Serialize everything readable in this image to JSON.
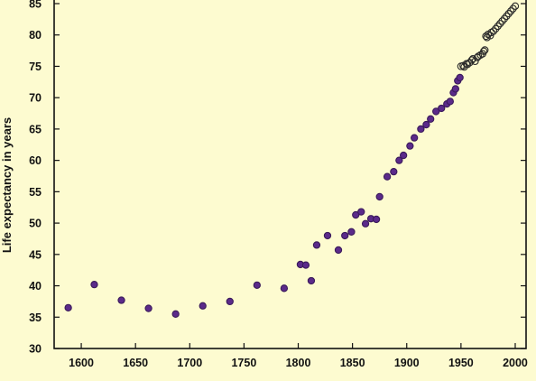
{
  "chart_data": {
    "type": "scatter",
    "title": "",
    "xlabel": "",
    "ylabel": "Life expectancy in years",
    "xlim": [
      1575,
      2010
    ],
    "ylim": [
      30,
      85
    ],
    "x_ticks": [
      1600,
      1650,
      1700,
      1750,
      1800,
      1850,
      1900,
      1950,
      2000
    ],
    "y_ticks": [
      30,
      35,
      40,
      45,
      50,
      55,
      60,
      65,
      70,
      75,
      80,
      85
    ],
    "grid": false,
    "legend": "none",
    "colors": {
      "early": "#5b2a8a",
      "late": "#2a2a2a",
      "background": "#fdfbd0"
    },
    "series": [
      {
        "points": [
          [
            1588,
            36.5
          ],
          [
            1612,
            40.2
          ],
          [
            1637,
            37.7
          ],
          [
            1662,
            36.4
          ],
          [
            1687,
            35.5
          ],
          [
            1712,
            36.8
          ],
          [
            1737,
            37.5
          ],
          [
            1762,
            40.1
          ],
          [
            1787,
            39.6
          ],
          [
            1802,
            43.4
          ],
          [
            1807,
            43.3
          ],
          [
            1812,
            40.8
          ],
          [
            1817,
            46.5
          ],
          [
            1827,
            48.0
          ],
          [
            1837,
            45.7
          ],
          [
            1843,
            48.0
          ],
          [
            1849,
            48.6
          ],
          [
            1853,
            51.3
          ],
          [
            1858,
            51.8
          ],
          [
            1862,
            49.9
          ],
          [
            1867,
            50.7
          ],
          [
            1872,
            50.6
          ],
          [
            1875,
            54.2
          ],
          [
            1882,
            57.4
          ],
          [
            1888,
            58.2
          ],
          [
            1893,
            60.0
          ],
          [
            1897,
            60.8
          ],
          [
            1903,
            62.3
          ],
          [
            1907,
            63.6
          ],
          [
            1913,
            65.0
          ],
          [
            1918,
            65.7
          ],
          [
            1922,
            66.6
          ],
          [
            1927,
            67.8
          ],
          [
            1932,
            68.3
          ],
          [
            1937,
            69.0
          ],
          [
            1940,
            69.4
          ],
          [
            1943,
            70.8
          ],
          [
            1945,
            71.4
          ],
          [
            1947,
            72.7
          ],
          [
            1949,
            73.2
          ],
          [
            1950,
            75.0
          ],
          [
            1952,
            75.1
          ],
          [
            1953,
            74.9
          ],
          [
            1955,
            75.4
          ],
          [
            1956,
            75.3
          ],
          [
            1958,
            75.6
          ],
          [
            1960,
            76.0
          ],
          [
            1961,
            76.2
          ],
          [
            1963,
            75.8
          ],
          [
            1965,
            76.4
          ],
          [
            1966,
            76.6
          ],
          [
            1968,
            76.8
          ],
          [
            1970,
            77.0
          ],
          [
            1971,
            77.4
          ],
          [
            1972,
            77.6
          ],
          [
            1973,
            79.8
          ],
          [
            1974,
            79.6
          ],
          [
            1975,
            80.1
          ],
          [
            1977,
            79.9
          ],
          [
            1978,
            80.4
          ],
          [
            1980,
            80.6
          ],
          [
            1982,
            81.0
          ],
          [
            1984,
            81.4
          ],
          [
            1986,
            81.8
          ],
          [
            1988,
            82.2
          ],
          [
            1990,
            82.6
          ],
          [
            1992,
            83.0
          ],
          [
            1994,
            83.4
          ],
          [
            1996,
            83.8
          ],
          [
            1998,
            84.2
          ],
          [
            2000,
            84.6
          ]
        ]
      }
    ]
  }
}
